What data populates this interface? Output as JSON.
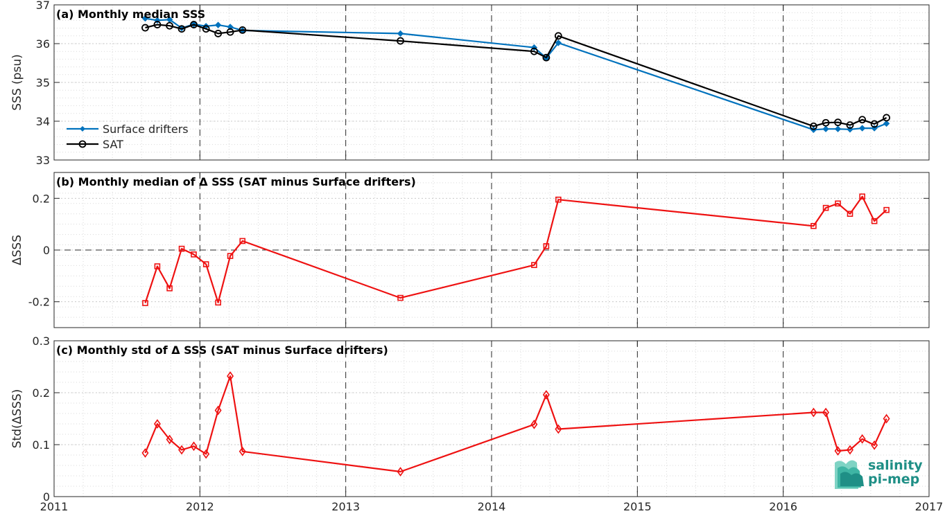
{
  "chart_data": [
    {
      "type": "line",
      "title": "(a) Monthly median SSS",
      "ylabel": "SSS (psu)",
      "xlabel": "",
      "xlim": [
        2011,
        2017
      ],
      "ylim": [
        33,
        37
      ],
      "xticks": [
        "2011",
        "2012",
        "2013",
        "2014",
        "2015",
        "2016",
        "2017"
      ],
      "yticks": [
        "33",
        "34",
        "35",
        "36",
        "37"
      ],
      "grid": true,
      "legend": "bottom-left",
      "series": [
        {
          "name": "Surface drifters",
          "color": "#0072BD",
          "marker": "dot",
          "x": [
            2011.625,
            2011.708,
            2011.792,
            2011.875,
            2011.958,
            2012.042,
            2012.125,
            2012.208,
            2012.292,
            2013.375,
            2014.292,
            2014.375,
            2014.458,
            2016.208,
            2016.292,
            2016.375,
            2016.458,
            2016.542,
            2016.625,
            2016.708
          ],
          "y": [
            36.65,
            36.6,
            36.62,
            36.4,
            36.5,
            36.45,
            36.48,
            36.43,
            36.34,
            36.26,
            35.9,
            35.63,
            36.02,
            33.78,
            33.8,
            33.8,
            33.79,
            33.82,
            33.82,
            33.94
          ]
        },
        {
          "name": "SAT",
          "color": "#000000",
          "marker": "circle",
          "x": [
            2011.625,
            2011.708,
            2011.792,
            2011.875,
            2011.958,
            2012.042,
            2012.125,
            2012.208,
            2012.292,
            2013.375,
            2014.292,
            2014.375,
            2014.458,
            2016.208,
            2016.292,
            2016.375,
            2016.458,
            2016.542,
            2016.625,
            2016.708
          ],
          "y": [
            36.41,
            36.49,
            36.46,
            36.38,
            36.49,
            36.38,
            36.26,
            36.3,
            36.35,
            36.07,
            35.8,
            35.64,
            36.2,
            33.87,
            33.96,
            33.97,
            33.9,
            34.04,
            33.93,
            34.09
          ]
        }
      ]
    },
    {
      "type": "line",
      "title": "(b) Monthly median of Δ SSS (SAT minus Surface drifters)",
      "ylabel": "ΔSSS",
      "xlabel": "",
      "xlim": [
        2011,
        2017
      ],
      "ylim": [
        -0.3,
        0.3
      ],
      "xticks": [
        "2011",
        "2012",
        "2013",
        "2014",
        "2015",
        "2016",
        "2017"
      ],
      "yticks": [
        "-0.2",
        "0",
        "0.2"
      ],
      "grid": true,
      "zero_line": true,
      "series": [
        {
          "color": "#EE1111",
          "marker": "square",
          "x": [
            2011.625,
            2011.708,
            2011.792,
            2011.875,
            2011.958,
            2012.042,
            2012.125,
            2012.208,
            2012.292,
            2013.375,
            2014.292,
            2014.375,
            2014.458,
            2016.208,
            2016.292,
            2016.375,
            2016.458,
            2016.542,
            2016.625,
            2016.708
          ],
          "y": [
            -0.205,
            -0.063,
            -0.148,
            0.005,
            -0.017,
            -0.055,
            -0.203,
            -0.023,
            0.035,
            -0.185,
            -0.058,
            0.015,
            0.195,
            0.093,
            0.163,
            0.18,
            0.14,
            0.207,
            0.112,
            0.155
          ]
        }
      ]
    },
    {
      "type": "line",
      "title": "(c) Monthly std of Δ SSS (SAT minus Surface drifters)",
      "ylabel": "Std(ΔSSS)",
      "xlabel": "",
      "xlim": [
        2011,
        2017
      ],
      "ylim": [
        0,
        0.3
      ],
      "xticks": [
        "2011",
        "2012",
        "2013",
        "2014",
        "2015",
        "2016",
        "2017"
      ],
      "yticks": [
        "0",
        "0.1",
        "0.2",
        "0.3"
      ],
      "grid": true,
      "series": [
        {
          "color": "#EE1111",
          "marker": "diamond",
          "x": [
            2011.625,
            2011.708,
            2011.792,
            2011.875,
            2011.958,
            2012.042,
            2012.125,
            2012.208,
            2012.292,
            2013.375,
            2014.292,
            2014.375,
            2014.458,
            2016.208,
            2016.292,
            2016.375,
            2016.458,
            2016.542,
            2016.625,
            2016.708
          ],
          "y": [
            0.084,
            0.14,
            0.11,
            0.09,
            0.097,
            0.082,
            0.166,
            0.232,
            0.087,
            0.048,
            0.139,
            0.196,
            0.13,
            0.162,
            0.162,
            0.088,
            0.09,
            0.111,
            0.099,
            0.15
          ]
        }
      ]
    }
  ],
  "logo": {
    "line1": "salinity",
    "line2": "pi-mep",
    "color": "#1f8f86"
  }
}
